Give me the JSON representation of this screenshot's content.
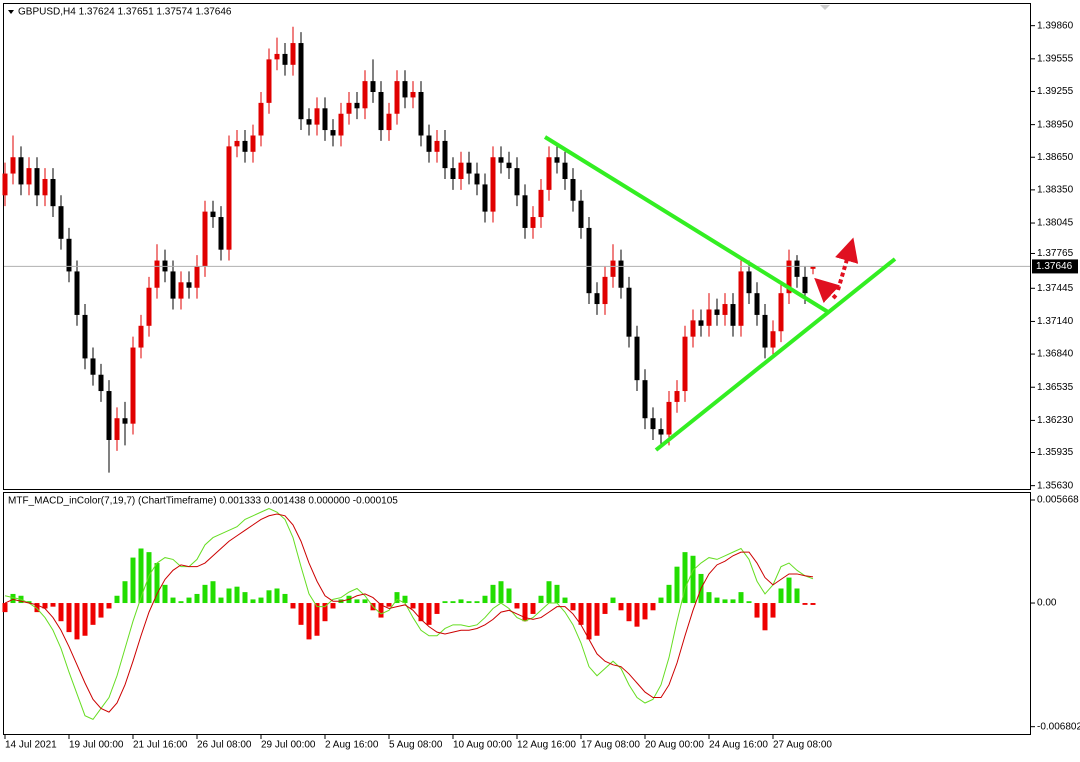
{
  "chart_data": [
    {
      "type": "candlestick",
      "title": "GBPUSD,H4  1.37624 1.37651 1.37574 1.37646",
      "categories": [
        "14 Jul 2021",
        null,
        null,
        null,
        null,
        null,
        null,
        null,
        "19 Jul 00:00",
        null,
        null,
        null,
        null,
        null,
        null,
        null,
        "21 Jul 16:00",
        null,
        null,
        null,
        null,
        null,
        null,
        null,
        "26 Jul 08:00",
        null,
        null,
        null,
        null,
        null,
        null,
        null,
        "29 Jul 00:00",
        null,
        null,
        null,
        null,
        null,
        null,
        null,
        "2 Aug 16:00",
        null,
        null,
        null,
        null,
        null,
        null,
        null,
        "5 Aug 08:00",
        null,
        null,
        null,
        null,
        null,
        null,
        null,
        "10 Aug 00:00",
        null,
        null,
        null,
        null,
        null,
        null,
        null,
        "12 Aug 16:00",
        null,
        null,
        null,
        null,
        null,
        null,
        null,
        "17 Aug 08:00",
        null,
        null,
        null,
        null,
        null,
        null,
        null,
        "20 Aug 00:00",
        null,
        null,
        null,
        null,
        null,
        null,
        null,
        "24 Aug 16:00",
        null,
        null,
        null,
        null,
        null,
        null,
        null,
        "27 Aug 08:00",
        null,
        null,
        null,
        null,
        null
      ],
      "open": [
        1.383,
        1.385,
        1.3865,
        1.384,
        1.3855,
        1.383,
        1.3845,
        1.382,
        1.379,
        1.376,
        1.372,
        1.368,
        1.3665,
        1.365,
        1.3605,
        1.3625,
        1.362,
        1.369,
        1.371,
        1.3745,
        1.377,
        1.376,
        1.3735,
        1.375,
        1.3745,
        1.3765,
        1.3815,
        1.381,
        1.378,
        1.3875,
        1.388,
        1.387,
        1.3885,
        1.3915,
        1.3955,
        1.396,
        1.395,
        1.397,
        1.39,
        1.3895,
        1.391,
        1.389,
        1.3885,
        1.3905,
        1.3915,
        1.391,
        1.3935,
        1.3925,
        1.389,
        1.3905,
        1.3935,
        1.392,
        1.3925,
        1.3885,
        1.387,
        1.388,
        1.3855,
        1.3845,
        1.386,
        1.385,
        1.384,
        1.3815,
        1.3865,
        1.386,
        1.3855,
        1.383,
        1.38,
        1.381,
        1.3835,
        1.3865,
        1.386,
        1.3845,
        1.3825,
        1.38,
        1.374,
        1.373,
        1.3755,
        1.377,
        1.3745,
        1.37,
        1.366,
        1.3625,
        1.3615,
        1.361,
        1.364,
        1.365,
        1.37,
        1.3715,
        1.371,
        1.3725,
        1.372,
        1.373,
        1.371,
        1.376,
        1.374,
        1.372,
        1.369,
        1.3705,
        1.374,
        1.377,
        1.3755,
        1.37624
      ],
      "high": [
        1.386,
        1.3885,
        1.3875,
        1.3865,
        1.3865,
        1.3855,
        1.3855,
        1.383,
        1.38,
        1.377,
        1.373,
        1.369,
        1.3675,
        1.366,
        1.3635,
        1.364,
        1.37,
        1.372,
        1.3755,
        1.3785,
        1.378,
        1.377,
        1.376,
        1.376,
        1.3775,
        1.3825,
        1.3825,
        1.382,
        1.3885,
        1.389,
        1.389,
        1.3895,
        1.3925,
        1.3965,
        1.3975,
        1.397,
        1.3985,
        1.398,
        1.391,
        1.392,
        1.392,
        1.39,
        1.3915,
        1.3925,
        1.3925,
        1.3945,
        1.3955,
        1.3935,
        1.3915,
        1.3945,
        1.3945,
        1.3935,
        1.3935,
        1.3895,
        1.389,
        1.389,
        1.3865,
        1.387,
        1.387,
        1.386,
        1.385,
        1.3875,
        1.3875,
        1.387,
        1.3865,
        1.384,
        1.382,
        1.3845,
        1.3875,
        1.3875,
        1.387,
        1.3855,
        1.3835,
        1.381,
        1.375,
        1.3765,
        1.3785,
        1.378,
        1.3755,
        1.371,
        1.367,
        1.3635,
        1.3625,
        1.365,
        1.366,
        1.371,
        1.3725,
        1.3725,
        1.374,
        1.3735,
        1.374,
        1.374,
        1.377,
        1.377,
        1.375,
        1.373,
        1.3715,
        1.375,
        1.378,
        1.3775,
        1.3765,
        1.37651
      ],
      "low": [
        1.382,
        1.384,
        1.383,
        1.383,
        1.382,
        1.382,
        1.381,
        1.378,
        1.375,
        1.371,
        1.367,
        1.3655,
        1.364,
        1.3575,
        1.3595,
        1.36,
        1.361,
        1.368,
        1.37,
        1.3735,
        1.375,
        1.3725,
        1.3725,
        1.3735,
        1.3735,
        1.3755,
        1.38,
        1.377,
        1.377,
        1.3865,
        1.386,
        1.386,
        1.3875,
        1.3905,
        1.3945,
        1.394,
        1.394,
        1.389,
        1.3885,
        1.3885,
        1.388,
        1.3875,
        1.3875,
        1.3895,
        1.39,
        1.39,
        1.3915,
        1.388,
        1.388,
        1.3895,
        1.391,
        1.391,
        1.3875,
        1.386,
        1.386,
        1.3845,
        1.3835,
        1.3835,
        1.384,
        1.383,
        1.3805,
        1.3805,
        1.385,
        1.3845,
        1.382,
        1.379,
        1.379,
        1.38,
        1.3825,
        1.385,
        1.3835,
        1.3815,
        1.379,
        1.373,
        1.372,
        1.372,
        1.3745,
        1.3735,
        1.369,
        1.365,
        1.3615,
        1.3605,
        1.36,
        1.36,
        1.363,
        1.364,
        1.369,
        1.37,
        1.37,
        1.371,
        1.371,
        1.37,
        1.37,
        1.373,
        1.371,
        1.368,
        1.368,
        1.3695,
        1.373,
        1.3745,
        1.373,
        1.37574
      ],
      "close": [
        1.385,
        1.3865,
        1.384,
        1.3855,
        1.383,
        1.3845,
        1.382,
        1.379,
        1.376,
        1.372,
        1.368,
        1.3665,
        1.365,
        1.3605,
        1.3625,
        1.362,
        1.369,
        1.371,
        1.3745,
        1.377,
        1.376,
        1.3735,
        1.375,
        1.3745,
        1.3765,
        1.3815,
        1.381,
        1.378,
        1.3875,
        1.388,
        1.387,
        1.3885,
        1.3915,
        1.3955,
        1.396,
        1.395,
        1.397,
        1.39,
        1.3895,
        1.391,
        1.389,
        1.3885,
        1.3905,
        1.3915,
        1.391,
        1.3935,
        1.3925,
        1.389,
        1.3905,
        1.3935,
        1.392,
        1.3925,
        1.3885,
        1.387,
        1.388,
        1.3855,
        1.3845,
        1.386,
        1.385,
        1.384,
        1.3815,
        1.3865,
        1.386,
        1.3855,
        1.383,
        1.38,
        1.381,
        1.3835,
        1.3865,
        1.386,
        1.3845,
        1.3825,
        1.38,
        1.374,
        1.373,
        1.3755,
        1.377,
        1.3745,
        1.37,
        1.366,
        1.3625,
        1.3615,
        1.361,
        1.364,
        1.365,
        1.37,
        1.3715,
        1.371,
        1.3725,
        1.372,
        1.373,
        1.371,
        1.376,
        1.374,
        1.372,
        1.369,
        1.3705,
        1.374,
        1.377,
        1.3755,
        1.374,
        1.37646
      ],
      "up_color": "#e00000",
      "down_color": "#000000",
      "price_line": 1.37646,
      "ylim": [
        1.3559,
        1.4005
      ],
      "yticks": [
        {
          "value": 1.3986,
          "label": "1.39860"
        },
        1.39555,
        1.39255,
        {
          "value": 1.3895,
          "label": "1.38950"
        },
        {
          "value": 1.3865,
          "label": "1.38650"
        },
        {
          "value": 1.3835,
          "label": "1.38350"
        },
        1.38045,
        1.37765,
        1.37445,
        {
          "value": 1.3714,
          "label": "1.37140"
        },
        {
          "value": 1.3684,
          "label": "1.36840"
        },
        1.36535,
        {
          "value": 1.3623,
          "label": "1.36230"
        },
        1.35935,
        {
          "value": 1.3563,
          "label": "1.35630"
        }
      ]
    },
    {
      "type": "macd",
      "title": "MTF_MACD_inColor(7,19,7) (ChartTimeframe) 0.001333 0.001438 0.000000 -0.000105",
      "histogram": {
        "positive_color": "#22dd00",
        "negative_color": "#ee0000",
        "values": [
          -0.0005,
          0.0005,
          0.0004,
          0.0001,
          -0.0005,
          -0.0003,
          -0.0002,
          -0.001,
          -0.0016,
          -0.002,
          -0.0018,
          -0.0012,
          -0.0008,
          -0.0003,
          0.0004,
          0.0012,
          0.0025,
          0.003,
          0.0028,
          0.0022,
          0.001,
          0.0003,
          0.0001,
          0.0003,
          0.0005,
          0.001,
          0.0012,
          0.0003,
          0.0008,
          0.0009,
          0.0006,
          0.0002,
          0.0003,
          0.0007,
          0.0008,
          0.0005,
          -0.0003,
          -0.0012,
          -0.002,
          -0.0018,
          -0.001,
          -0.0003,
          0.0002,
          0.0004,
          0.0002,
          0.0002,
          -0.0004,
          -0.0008,
          -0.0002,
          0.0006,
          0.0004,
          -0.0003,
          -0.001,
          -0.0012,
          -0.0006,
          0.0001,
          0.0001,
          0.0002,
          0.0001,
          0.0001,
          0.0004,
          0.001,
          0.0012,
          0.0008,
          -0.0003,
          -0.001,
          -0.0006,
          0.0004,
          0.0012,
          0.001,
          0.0003,
          -0.0004,
          -0.0012,
          -0.002,
          -0.0018,
          -0.0006,
          0.0003,
          -0.0004,
          -0.001,
          -0.0013,
          -0.0009,
          -0.0004,
          0.0003,
          0.001,
          0.002,
          0.0028,
          0.0026,
          0.0016,
          0.0006,
          0.0003,
          0.0002,
          0.0002,
          0.0006,
          0.0001,
          -0.0008,
          -0.0015,
          -0.0008,
          0.0008,
          0.0014,
          0.0008,
          -0.0001,
          -0.000105
        ]
      },
      "series": [
        {
          "color": "#66dd22",
          "values": [
            0.0004,
            0.0003,
            0.0002,
            0.0,
            -0.0003,
            -0.0008,
            -0.0015,
            -0.0025,
            -0.0038,
            -0.005,
            -0.0062,
            -0.0064,
            -0.0058,
            -0.0052,
            -0.004,
            -0.0025,
            -0.001,
            0.0003,
            0.0015,
            0.0022,
            0.0025,
            0.0024,
            0.002,
            0.002,
            0.0024,
            0.0032,
            0.0036,
            0.0038,
            0.004,
            0.0042,
            0.0046,
            0.0048,
            0.005,
            0.0052,
            0.005,
            0.0046,
            0.0036,
            0.002,
            0.0005,
            -0.0002,
            -0.0002,
            0.0002,
            0.0003,
            0.0006,
            0.0008,
            0.0004,
            -0.0002,
            -0.0006,
            -0.0004,
            0.0002,
            0.0,
            -0.0008,
            -0.0015,
            -0.0018,
            -0.0018,
            -0.0014,
            -0.0012,
            -0.0012,
            -0.0013,
            -0.0012,
            -0.0008,
            -0.0003,
            0.0,
            -0.0003,
            -0.0008,
            -0.001,
            -0.0008,
            -0.0004,
            0.0,
            0.0,
            -0.0005,
            -0.0012,
            -0.0022,
            -0.0035,
            -0.004,
            -0.0036,
            -0.0032,
            -0.0036,
            -0.0045,
            -0.0052,
            -0.0055,
            -0.0053,
            -0.0045,
            -0.003,
            -0.001,
            0.0008,
            0.0018,
            0.0022,
            0.0025,
            0.0024,
            0.0026,
            0.0028,
            0.003,
            0.0024,
            0.0012,
            0.0005,
            0.001,
            0.002,
            0.0022,
            0.0018,
            0.0015,
            0.001333
          ]
        },
        {
          "color": "#cc0000",
          "values": [
            0.0,
            0.0002,
            0.0001,
            0.0,
            -0.0001,
            -0.0003,
            -0.0008,
            -0.0015,
            -0.0024,
            -0.0034,
            -0.0044,
            -0.0053,
            -0.0058,
            -0.006,
            -0.0055,
            -0.0045,
            -0.0032,
            -0.0018,
            -0.0005,
            0.0005,
            0.0013,
            0.0018,
            0.0021,
            0.002,
            0.002,
            0.0022,
            0.0026,
            0.003,
            0.0034,
            0.0037,
            0.004,
            0.0043,
            0.0046,
            0.0048,
            0.0049,
            0.0048,
            0.0043,
            0.0034,
            0.0022,
            0.0012,
            0.0004,
            0.0001,
            0.0001,
            0.0002,
            0.0004,
            0.0005,
            0.0003,
            -0.0001,
            -0.0003,
            -0.0002,
            -0.0001,
            -0.0004,
            -0.0009,
            -0.0013,
            -0.0016,
            -0.0017,
            -0.0016,
            -0.0015,
            -0.0015,
            -0.0014,
            -0.0012,
            -0.0009,
            -0.0005,
            -0.0004,
            -0.0006,
            -0.0008,
            -0.0009,
            -0.0008,
            -0.0005,
            -0.0002,
            -0.0002,
            -0.0006,
            -0.0012,
            -0.002,
            -0.0028,
            -0.0032,
            -0.0034,
            -0.0035,
            -0.0039,
            -0.0044,
            -0.0049,
            -0.0052,
            -0.0052,
            -0.0045,
            -0.0033,
            -0.0018,
            -0.0004,
            0.0008,
            0.0016,
            0.0021,
            0.0023,
            0.0026,
            0.0028,
            0.0028,
            0.0022,
            0.0014,
            0.001,
            0.0013,
            0.0016,
            0.0016,
            0.0015,
            0.001438
          ]
        }
      ],
      "ylim": [
        -0.00726,
        0.006053
      ],
      "yticks": [
        0.005668,
        {
          "value": 0,
          "label": "0.00"
        },
        -0.006802
      ]
    }
  ]
}
